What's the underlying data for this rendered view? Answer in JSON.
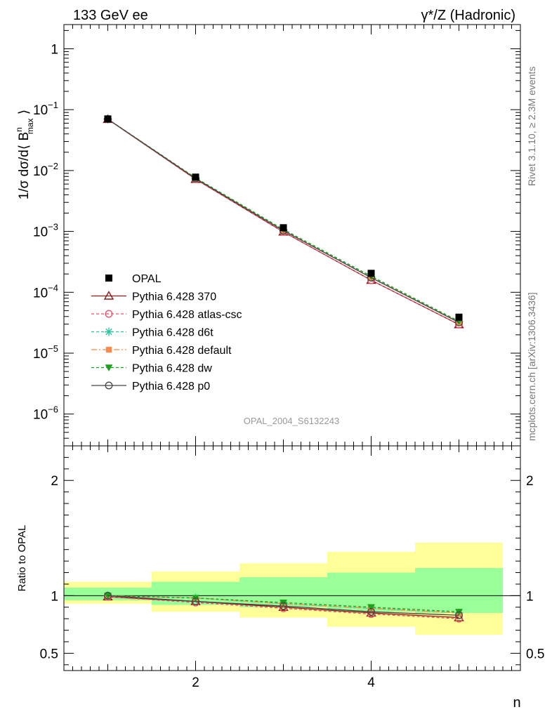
{
  "header": {
    "left_title": "133 GeV ee",
    "right_title": "γ*/Z (Hadronic)"
  },
  "side_text": {
    "rivet": "Rivet 3.1.10, ≥ 2.3M events",
    "mcplots": "mcplots.cern.ch [arXiv:1306.3436]"
  },
  "watermark": "OPAL_2004_S6132243",
  "chart_data": [
    {
      "type": "line",
      "name": "main-panel",
      "yscale": "log",
      "ylabel": "1/σ dσ/d⟨ B^n_max ⟩",
      "ylabel_parts": {
        "main": "1/σ dσ/d⟨ B",
        "sup": "n",
        "sub": "max",
        "close": " ⟩"
      },
      "xlim": [
        0.5,
        5.7
      ],
      "ylim": [
        3e-07,
        2.5
      ],
      "ytick_labels": [
        {
          "value": 1,
          "base": "1",
          "exp": ""
        },
        {
          "value": 0.1,
          "base": "10",
          "exp": "−1"
        },
        {
          "value": 0.01,
          "base": "10",
          "exp": "−2"
        },
        {
          "value": 0.001,
          "base": "10",
          "exp": "−3"
        },
        {
          "value": 0.0001,
          "base": "10",
          "exp": "−4"
        },
        {
          "value": 1e-05,
          "base": "10",
          "exp": "−5"
        },
        {
          "value": 1e-06,
          "base": "10",
          "exp": "−6"
        }
      ],
      "x": [
        1,
        2,
        3,
        4,
        5
      ],
      "data": {
        "name": "OPAL",
        "values": [
          0.0705,
          0.0078,
          0.00115,
          0.000205,
          3.9e-05
        ]
      },
      "series": [
        {
          "name": "Pythia 6.428 370",
          "color": "#8b1a1a",
          "dash": "",
          "marker": "triangle-open",
          "values": [
            0.0695,
            0.0072,
            0.00098,
            0.000158,
            2.95e-05
          ]
        },
        {
          "name": "Pythia 6.428 atlas-csc",
          "color": "#e8506e",
          "dash": "4,3",
          "marker": "circle-open",
          "values": [
            0.0695,
            0.0072,
            0.00098,
            0.000158,
            2.95e-05
          ]
        },
        {
          "name": "Pythia 6.428 d6t",
          "color": "#2ec4a0",
          "dash": "4,3",
          "marker": "star",
          "values": [
            0.07,
            0.0075,
            0.00106,
            0.00018,
            3.3e-05
          ]
        },
        {
          "name": "Pythia 6.428 default",
          "color": "#f58b4c",
          "dash": "8,3,2,3",
          "marker": "square",
          "values": [
            0.07,
            0.0074,
            0.00104,
            0.000176,
            3.25e-05
          ]
        },
        {
          "name": "Pythia 6.428 dw",
          "color": "#1aa31a",
          "dash": "4,3",
          "marker": "triangle-down",
          "values": [
            0.07,
            0.0076,
            0.00108,
            0.000184,
            3.35e-05
          ]
        },
        {
          "name": "Pythia 6.428 p0",
          "color": "#444444",
          "dash": "",
          "marker": "circle-open",
          "values": [
            0.07,
            0.0074,
            0.00103,
            0.000174,
            3.2e-05
          ]
        }
      ]
    },
    {
      "type": "line",
      "name": "ratio-panel",
      "ylabel": "Ratio to OPAL",
      "xlabel": "n",
      "xlim": [
        0.5,
        5.7
      ],
      "ylim": [
        0.35,
        2.3
      ],
      "yticks": [
        0.5,
        1,
        2
      ],
      "ytick_labels": [
        "0.5",
        "1",
        "2"
      ],
      "xticks": [
        2,
        4
      ],
      "xtick_labels": [
        "2",
        "4"
      ],
      "bands": {
        "bin_edges": [
          0.5,
          1.5,
          2.5,
          3.5,
          4.5,
          5.5
        ],
        "yellow_low": [
          0.93,
          0.86,
          0.81,
          0.73,
          0.66
        ],
        "yellow_high": [
          1.12,
          1.21,
          1.28,
          1.38,
          1.46
        ],
        "green_low": [
          0.96,
          0.92,
          0.9,
          0.86,
          0.85
        ],
        "green_high": [
          1.07,
          1.12,
          1.16,
          1.2,
          1.24
        ]
      },
      "x": [
        1,
        2,
        3,
        4,
        5
      ],
      "series": [
        {
          "name": "Pythia 6.428 370",
          "values": [
            0.99,
            0.95,
            0.9,
            0.85,
            0.81
          ]
        },
        {
          "name": "Pythia 6.428 atlas-csc",
          "values": [
            0.99,
            0.94,
            0.89,
            0.84,
            0.8
          ]
        },
        {
          "name": "Pythia 6.428 d6t",
          "values": [
            1.0,
            0.98,
            0.93,
            0.89,
            0.85
          ]
        },
        {
          "name": "Pythia 6.428 default",
          "values": [
            1.0,
            0.98,
            0.93,
            0.89,
            0.85
          ]
        },
        {
          "name": "Pythia 6.428 dw",
          "values": [
            1.0,
            0.98,
            0.94,
            0.9,
            0.86
          ]
        },
        {
          "name": "Pythia 6.428 p0",
          "values": [
            1.0,
            0.95,
            0.91,
            0.86,
            0.83
          ]
        }
      ]
    }
  ]
}
